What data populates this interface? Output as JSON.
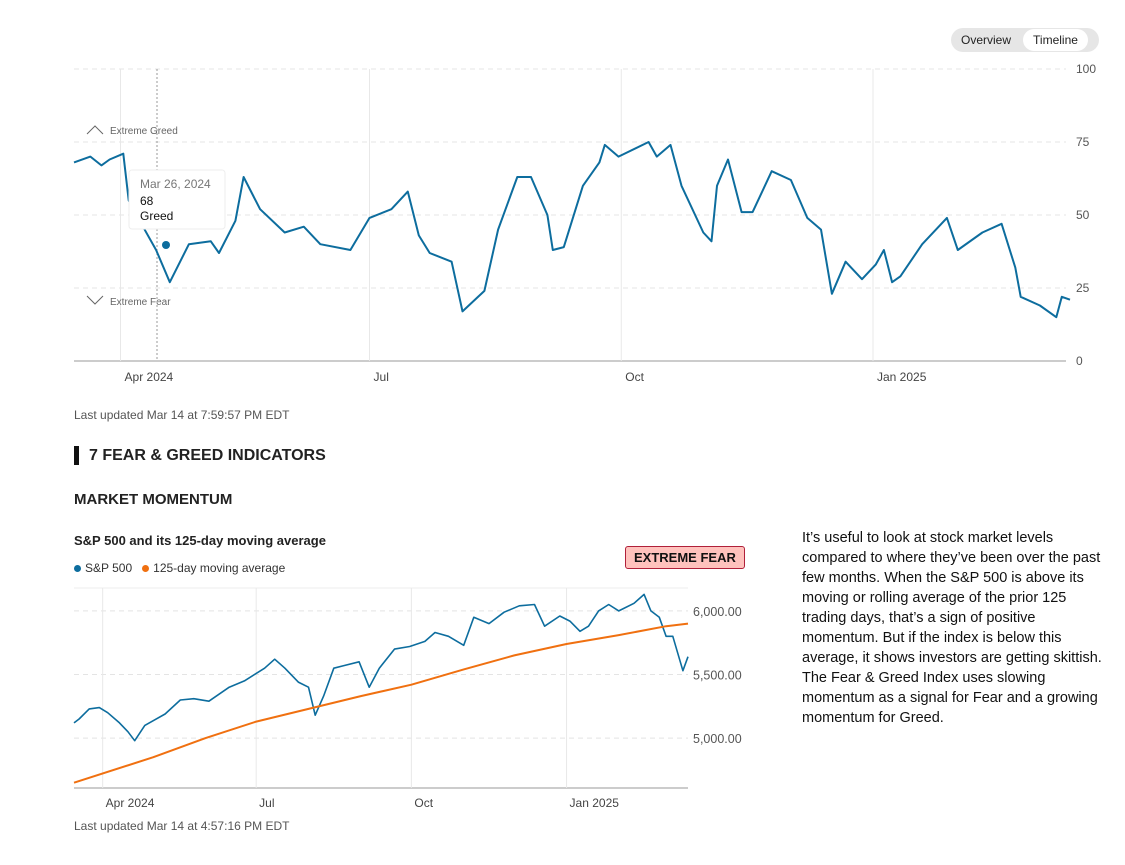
{
  "toggle": {
    "overview": "Overview",
    "timeline": "Timeline",
    "active": "timeline"
  },
  "main_chart_updated": "Last updated Mar 14 at 7:59:57 PM EDT",
  "section_title": "7 FEAR & GREED INDICATORS",
  "indicator": {
    "title": "MARKET MOMENTUM",
    "chart_title": "S&P 500 and its 125-day moving average",
    "badge": "EXTREME FEAR",
    "description": "It’s useful to look at stock market levels compared to where they’ve been over the past few months. When the S&P 500 is above its moving or rolling average of the prior 125 trading days, that’s a sign of positive momentum. But if the index is below this average, it shows investors are getting skittish. The Fear & Greed Index uses slowing momentum as a signal for Fear and a growing momentum for Greed.",
    "updated": "Last updated Mar 14 at 4:57:16 PM EDT"
  },
  "colors": {
    "line": "#0d6d9e",
    "ma": "#f07010",
    "badge_bg": "#ffc2bd",
    "badge_border": "#b0203a"
  },
  "chart_data": [
    {
      "type": "line",
      "x_range": [
        "2024-03-15",
        "2025-03-14"
      ],
      "ylim": [
        0,
        100
      ],
      "y_ticks": [
        0,
        25,
        50,
        75,
        100
      ],
      "x_ticks": [
        {
          "date": "2024-04-01",
          "label": "Apr 2024"
        },
        {
          "date": "2024-07-01",
          "label": "Jul"
        },
        {
          "date": "2024-10-01",
          "label": "Oct"
        },
        {
          "date": "2025-01-01",
          "label": "Jan 2025"
        }
      ],
      "zone_labels": {
        "greed": "Extreme Greed",
        "fear": "Extreme Fear"
      },
      "tooltip": {
        "date": "Mar 26, 2024",
        "value": "68",
        "rating": "Greed"
      },
      "grid": true,
      "series": [
        {
          "values": [
            [
              "2024-03-15",
              68
            ],
            [
              "2024-03-21",
              70
            ],
            [
              "2024-03-25",
              67
            ],
            [
              "2024-03-28",
              69
            ],
            [
              "2024-04-02",
              71
            ],
            [
              "2024-04-04",
              55
            ],
            [
              "2024-04-08",
              48
            ],
            [
              "2024-04-14",
              38
            ],
            [
              "2024-04-19",
              27
            ],
            [
              "2024-04-26",
              40
            ],
            [
              "2024-05-04",
              41
            ],
            [
              "2024-05-07",
              37
            ],
            [
              "2024-05-13",
              48
            ],
            [
              "2024-05-16",
              63
            ],
            [
              "2024-05-22",
              52
            ],
            [
              "2024-05-31",
              44
            ],
            [
              "2024-06-07",
              46
            ],
            [
              "2024-06-13",
              40
            ],
            [
              "2024-06-24",
              38
            ],
            [
              "2024-07-01",
              49
            ],
            [
              "2024-07-09",
              52
            ],
            [
              "2024-07-15",
              58
            ],
            [
              "2024-07-19",
              43
            ],
            [
              "2024-07-23",
              37
            ],
            [
              "2024-07-31",
              34
            ],
            [
              "2024-08-04",
              17
            ],
            [
              "2024-08-12",
              24
            ],
            [
              "2024-08-17",
              45
            ],
            [
              "2024-08-24",
              63
            ],
            [
              "2024-08-29",
              63
            ],
            [
              "2024-09-04",
              50
            ],
            [
              "2024-09-06",
              38
            ],
            [
              "2024-09-10",
              39
            ],
            [
              "2024-09-17",
              60
            ],
            [
              "2024-09-23",
              68
            ],
            [
              "2024-09-25",
              74
            ],
            [
              "2024-09-30",
              70
            ],
            [
              "2024-10-11",
              75
            ],
            [
              "2024-10-14",
              70
            ],
            [
              "2024-10-19",
              74
            ],
            [
              "2024-10-23",
              60
            ],
            [
              "2024-10-31",
              44
            ],
            [
              "2024-11-03",
              41
            ],
            [
              "2024-11-05",
              60
            ],
            [
              "2024-11-09",
              69
            ],
            [
              "2024-11-14",
              51
            ],
            [
              "2024-11-18",
              51
            ],
            [
              "2024-11-25",
              65
            ],
            [
              "2024-12-02",
              62
            ],
            [
              "2024-12-08",
              49
            ],
            [
              "2024-12-13",
              45
            ],
            [
              "2024-12-17",
              23
            ],
            [
              "2024-12-22",
              34
            ],
            [
              "2024-12-28",
              28
            ],
            [
              "2025-01-02",
              33
            ],
            [
              "2025-01-05",
              38
            ],
            [
              "2025-01-08",
              27
            ],
            [
              "2025-01-11",
              29
            ],
            [
              "2025-01-19",
              40
            ],
            [
              "2025-01-28",
              49
            ],
            [
              "2025-02-01",
              38
            ],
            [
              "2025-02-10",
              44
            ],
            [
              "2025-02-17",
              47
            ],
            [
              "2025-02-22",
              32
            ],
            [
              "2025-02-24",
              22
            ],
            [
              "2025-03-03",
              19
            ],
            [
              "2025-03-09",
              15
            ],
            [
              "2025-03-11",
              22
            ],
            [
              "2025-03-14",
              21
            ]
          ]
        }
      ]
    },
    {
      "type": "line",
      "title": "S&P 500 and its 125-day moving average",
      "x_range": [
        "2024-03-15",
        "2025-03-14"
      ],
      "ylim": [
        4608,
        6180
      ],
      "y_ticks": [
        {
          "value": 5000,
          "label": "5,000.00"
        },
        {
          "value": 5500,
          "label": "5,500.00"
        },
        {
          "value": 6000,
          "label": "6,000.00"
        }
      ],
      "x_ticks": [
        {
          "date": "2024-04-01",
          "label": "Apr 2024"
        },
        {
          "date": "2024-07-01",
          "label": "Jul"
        },
        {
          "date": "2024-10-01",
          "label": "Oct"
        },
        {
          "date": "2025-01-01",
          "label": "Jan 2025"
        }
      ],
      "legend": "top-left",
      "grid": true,
      "series": [
        {
          "name": "S&P 500",
          "color": "#0d6d9e",
          "values": [
            [
              "2024-03-15",
              5120
            ],
            [
              "2024-03-18",
              5150
            ],
            [
              "2024-03-24",
              5230
            ],
            [
              "2024-03-30",
              5240
            ],
            [
              "2024-04-04",
              5200
            ],
            [
              "2024-04-11",
              5120
            ],
            [
              "2024-04-16",
              5050
            ],
            [
              "2024-04-20",
              4980
            ],
            [
              "2024-04-26",
              5100
            ],
            [
              "2024-05-02",
              5145
            ],
            [
              "2024-05-08",
              5190
            ],
            [
              "2024-05-17",
              5300
            ],
            [
              "2024-05-25",
              5310
            ],
            [
              "2024-06-03",
              5290
            ],
            [
              "2024-06-15",
              5400
            ],
            [
              "2024-06-24",
              5450
            ],
            [
              "2024-07-06",
              5550
            ],
            [
              "2024-07-12",
              5620
            ],
            [
              "2024-07-18",
              5550
            ],
            [
              "2024-07-26",
              5440
            ],
            [
              "2024-08-01",
              5400
            ],
            [
              "2024-08-05",
              5180
            ],
            [
              "2024-08-10",
              5330
            ],
            [
              "2024-08-16",
              5550
            ],
            [
              "2024-08-22",
              5570
            ],
            [
              "2024-08-31",
              5600
            ],
            [
              "2024-09-06",
              5400
            ],
            [
              "2024-09-12",
              5550
            ],
            [
              "2024-09-21",
              5700
            ],
            [
              "2024-09-30",
              5720
            ],
            [
              "2024-10-09",
              5760
            ],
            [
              "2024-10-15",
              5830
            ],
            [
              "2024-10-23",
              5800
            ],
            [
              "2024-11-01",
              5730
            ],
            [
              "2024-11-07",
              5950
            ],
            [
              "2024-11-16",
              5900
            ],
            [
              "2024-11-25",
              5990
            ],
            [
              "2024-12-04",
              6040
            ],
            [
              "2024-12-13",
              6050
            ],
            [
              "2024-12-19",
              5880
            ],
            [
              "2024-12-28",
              5960
            ],
            [
              "2025-01-03",
              5920
            ],
            [
              "2025-01-09",
              5840
            ],
            [
              "2025-01-14",
              5880
            ],
            [
              "2025-01-20",
              6000
            ],
            [
              "2025-01-26",
              6050
            ],
            [
              "2025-02-01",
              6000
            ],
            [
              "2025-02-10",
              6060
            ],
            [
              "2025-02-16",
              6130
            ],
            [
              "2025-02-20",
              6000
            ],
            [
              "2025-02-25",
              5950
            ],
            [
              "2025-03-01",
              5800
            ],
            [
              "2025-03-05",
              5800
            ],
            [
              "2025-03-11",
              5530
            ],
            [
              "2025-03-14",
              5640
            ]
          ]
        },
        {
          "name": "125-day moving average",
          "color": "#f07010",
          "values": [
            [
              "2024-03-15",
              4650
            ],
            [
              "2024-05-01",
              4850
            ],
            [
              "2024-06-01",
              5000
            ],
            [
              "2024-07-01",
              5130
            ],
            [
              "2024-08-01",
              5230
            ],
            [
              "2024-09-01",
              5330
            ],
            [
              "2024-10-01",
              5420
            ],
            [
              "2024-11-01",
              5540
            ],
            [
              "2024-12-01",
              5650
            ],
            [
              "2025-01-01",
              5740
            ],
            [
              "2025-02-01",
              5810
            ],
            [
              "2025-03-01",
              5880
            ],
            [
              "2025-03-14",
              5900
            ]
          ]
        }
      ]
    }
  ]
}
